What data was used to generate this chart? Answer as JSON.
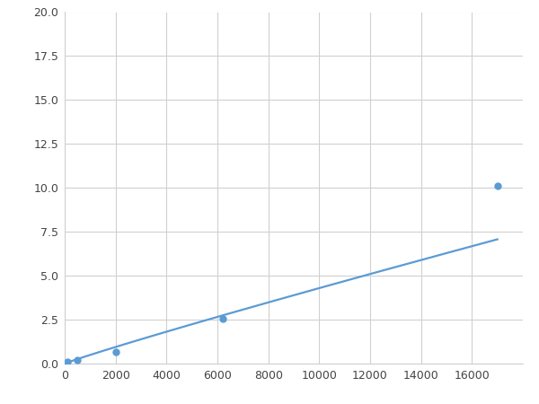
{
  "x_points": [
    100,
    500,
    2000,
    6200,
    17000
  ],
  "y_points": [
    0.08,
    0.2,
    0.65,
    2.55,
    10.1
  ],
  "line_color": "#5b9bd5",
  "marker_color": "#5b9bd5",
  "marker_size": 5,
  "linewidth": 1.6,
  "xlim": [
    0,
    18000
  ],
  "ylim": [
    0.0,
    20.0
  ],
  "xticks": [
    0,
    2000,
    4000,
    6000,
    8000,
    10000,
    12000,
    14000,
    16000
  ],
  "yticks": [
    0.0,
    2.5,
    5.0,
    7.5,
    10.0,
    12.5,
    15.0,
    17.5,
    20.0
  ],
  "grid_color": "#d0d0d0",
  "background_color": "#ffffff",
  "figure_bg": "#ffffff"
}
